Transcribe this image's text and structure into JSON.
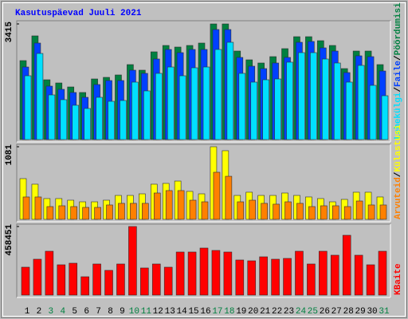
{
  "title": "Kasutuspäevad Juuli 2021",
  "legend_separator": "/",
  "chart_data": [
    {
      "type": "bar",
      "ylim": [
        0,
        3415
      ],
      "yticks": [
        3415
      ],
      "series": [
        {
          "name": "Pöördumisi",
          "color": "#008040",
          "values": [
            2332,
            3062,
            1766,
            1672,
            1554,
            1390,
            1790,
            1837,
            1908,
            2214,
            2049,
            2591,
            2779,
            2732,
            2779,
            2850,
            3415,
            3415,
            2614,
            2355,
            2261,
            2449,
            2685,
            3038,
            3038,
            2920,
            2779,
            2096,
            2614,
            2614,
            2214
          ]
        },
        {
          "name": "Faile",
          "color": "#0040ff",
          "values": [
            2143,
            2850,
            1578,
            1484,
            1390,
            1248,
            1625,
            1743,
            1743,
            2049,
            1955,
            2379,
            2661,
            2567,
            2661,
            2661,
            3250,
            3250,
            2426,
            2167,
            2096,
            2261,
            2426,
            2873,
            2897,
            2708,
            2614,
            1978,
            2473,
            2449,
            2025
          ]
        },
        {
          "name": "Lehekülgi",
          "color": "#00e0ff",
          "values": [
            1884,
            2543,
            1319,
            1178,
            1013,
            918,
            1248,
            1130,
            1154,
            1696,
            1437,
            1955,
            2143,
            1884,
            2120,
            2143,
            2661,
            2873,
            1955,
            1696,
            1766,
            1790,
            2285,
            2567,
            2567,
            2379,
            2261,
            1696,
            2190,
            1601,
            1295
          ]
        }
      ]
    },
    {
      "type": "bar",
      "ylim": [
        0,
        1081
      ],
      "yticks": [
        1081
      ],
      "series": [
        {
          "name": "Külastusi",
          "color": "#ffff00",
          "values": [
            606,
            523,
            309,
            309,
            285,
            261,
            261,
            285,
            356,
            356,
            380,
            523,
            535,
            570,
            416,
            380,
            1081,
            1022,
            356,
            404,
            356,
            356,
            392,
            356,
            333,
            309,
            261,
            297,
            404,
            404,
            333
          ]
        },
        {
          "name": "Arvuteid",
          "color": "#ff8000",
          "values": [
            333,
            333,
            190,
            202,
            190,
            178,
            178,
            214,
            238,
            238,
            238,
            392,
            428,
            428,
            285,
            261,
            701,
            641,
            261,
            285,
            238,
            226,
            261,
            238,
            190,
            202,
            202,
            190,
            273,
            214,
            214
          ]
        }
      ]
    },
    {
      "type": "bar",
      "ylim": [
        0,
        458451
      ],
      "yticks": [
        458451
      ],
      "categories": [
        "1",
        "2",
        "3",
        "4",
        "5",
        "6",
        "7",
        "8",
        "9",
        "10",
        "11",
        "12",
        "13",
        "14",
        "15",
        "16",
        "17",
        "18",
        "19",
        "20",
        "21",
        "22",
        "23",
        "24",
        "25",
        "26",
        "27",
        "28",
        "29",
        "30",
        "31"
      ],
      "highlight_categories": [
        "3",
        "4",
        "10",
        "11",
        "17",
        "18",
        "24",
        "25",
        "31"
      ],
      "highlight_color": "#008040",
      "series": [
        {
          "name": "KBaite",
          "color": "#ff0000",
          "values": [
            186600,
            239900,
            293200,
            202600,
            213200,
            122600,
            207900,
            165300,
            207900,
            458451,
            181300,
            207900,
            186600,
            287900,
            287900,
            314500,
            298500,
            287900,
            234600,
            229200,
            255900,
            239900,
            245200,
            293200,
            207900,
            293200,
            266600,
            399800,
            266600,
            202600,
            293200
          ]
        }
      ]
    }
  ]
}
